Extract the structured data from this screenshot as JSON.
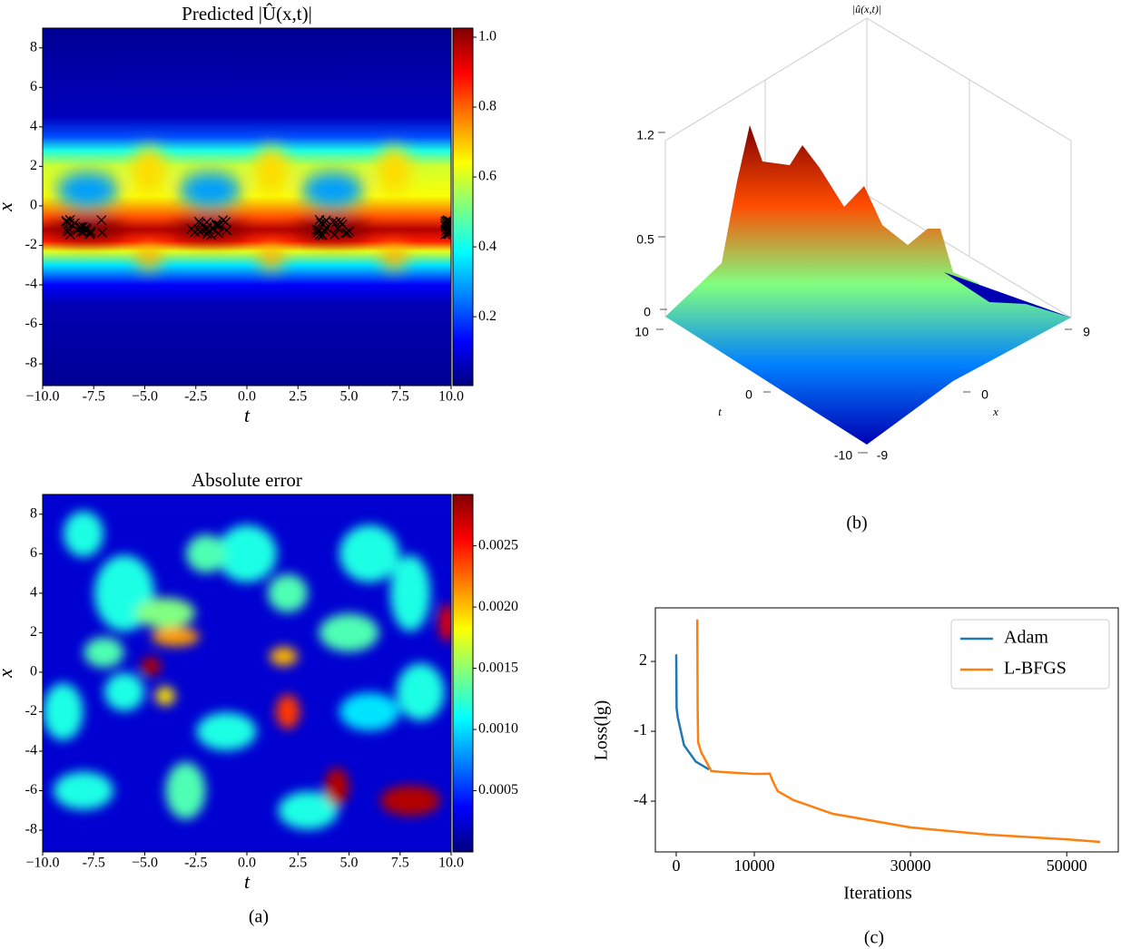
{
  "chart_data": [
    {
      "type": "heatmap",
      "title": "Predicted |Û(x,t)|",
      "xlabel": "t",
      "ylabel": "x",
      "cmap": "jet",
      "xlim": [
        -10,
        10
      ],
      "ylim": [
        -9.1,
        9.0
      ],
      "xticks": [
        {
          "value": -10,
          "label": "−10.0"
        },
        -7.5,
        {
          "value": -5,
          "label": "−5.0"
        },
        -2.5,
        {
          "value": 0,
          "label": "0.0"
        },
        2.5,
        {
          "value": 5,
          "label": "5.0"
        },
        7.5,
        {
          "value": 10,
          "label": "10.0"
        }
      ],
      "yticks": [
        -8,
        -6,
        -4,
        -2,
        0,
        2,
        4,
        6,
        8
      ],
      "clim": [
        0.003,
        1.026
      ],
      "cticks": [
        0.2,
        0.4,
        0.6,
        0.8,
        {
          "value": 1,
          "label": "1.0"
        }
      ]
    },
    {
      "type": "heatmap",
      "title": "Absolute error",
      "xlabel": "t",
      "ylabel": "x",
      "cmap": "jet",
      "caption": "(a)",
      "xlim": [
        -10,
        10
      ],
      "ylim": [
        -9.1,
        9.0
      ],
      "xticks": [
        {
          "value": -10,
          "label": "−10.0"
        },
        -7.5,
        {
          "value": -5,
          "label": "−5.0"
        },
        -2.5,
        {
          "value": 0,
          "label": "0.0"
        },
        2.5,
        {
          "value": 5,
          "label": "5.0"
        },
        7.5,
        {
          "value": 10,
          "label": "10.0"
        }
      ],
      "yticks": [
        -8,
        -6,
        -4,
        -2,
        0,
        2,
        4,
        6,
        8
      ],
      "clim": [
        0,
        0.00292
      ],
      "cticks": [
        0.0005,
        {
          "value": 0.001,
          "label": "0.0010"
        },
        0.0015,
        {
          "value": 0.002,
          "label": "0.0020"
        },
        0.0025
      ]
    },
    {
      "type": "surface3d",
      "title": "|û(x,t)|",
      "xlabel": "t",
      "ylabel": "x",
      "cmap": "jet",
      "caption": "(b)",
      "xticks": [
        10,
        0,
        -10
      ],
      "yticks": [
        9,
        0,
        -9
      ],
      "zticks": [
        1.2,
        0.5,
        0
      ]
    },
    {
      "type": "line",
      "xlabel": "Iterations",
      "ylabel": "Loss(lg)",
      "caption": "(c)",
      "legend": "upper right",
      "xlim": [
        -2670,
        56600
      ],
      "ylim": [
        -6.18,
        4.3
      ],
      "xticks": [
        0,
        10000,
        30000,
        50000
      ],
      "yticks": [
        2,
        -1,
        -4
      ],
      "series": [
        {
          "name": "Adam",
          "color": "#1f77b4",
          "x": [
            0,
            50,
            200,
            1000,
            2500,
            4200
          ],
          "values": [
            2.3,
            0,
            -0.4,
            -1.6,
            -2.3,
            -2.64
          ]
        },
        {
          "name": "L-BFGS",
          "color": "#ff7f0e",
          "x": [
            2700,
            2750,
            2800,
            3200,
            4500,
            6000,
            10000,
            12000,
            12300,
            13000,
            15000,
            20000,
            30000,
            40000,
            50000,
            54300
          ],
          "values": [
            3.8,
            0,
            -1.47,
            -1.9,
            -2.71,
            -2.75,
            -2.83,
            -2.82,
            -3.1,
            -3.57,
            -3.95,
            -4.54,
            -5.13,
            -5.44,
            -5.64,
            -5.75
          ]
        }
      ]
    }
  ]
}
